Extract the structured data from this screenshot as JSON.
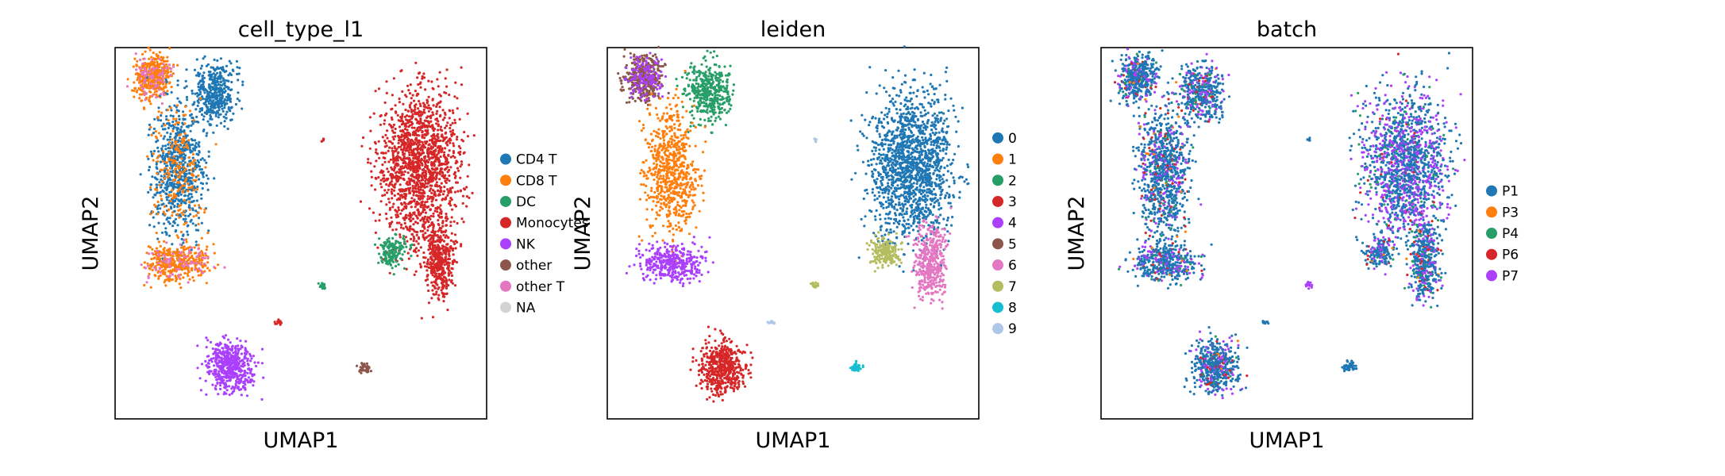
{
  "chart_data": [
    {
      "type": "scatter",
      "title": "cell_type_l1",
      "xlabel": "UMAP1",
      "ylabel": "UMAP2",
      "grid": false,
      "ticks": false,
      "legend_placement": "right",
      "series": [
        {
          "name": "CD4 T",
          "color": "#1f77b4"
        },
        {
          "name": "CD8 T",
          "color": "#ff7f0e"
        },
        {
          "name": "DC",
          "color": "#279e68"
        },
        {
          "name": "Monocytes",
          "color": "#d62728"
        },
        {
          "name": "NK",
          "color": "#aa40fc"
        },
        {
          "name": "other",
          "color": "#8c564b"
        },
        {
          "name": "other T",
          "color": "#e377c2"
        },
        {
          "name": "NA",
          "color": "#d3d3d3"
        }
      ]
    },
    {
      "type": "scatter",
      "title": "leiden",
      "xlabel": "UMAP1",
      "ylabel": "UMAP2",
      "grid": false,
      "ticks": false,
      "legend_placement": "right",
      "series": [
        {
          "name": "0",
          "color": "#1f77b4"
        },
        {
          "name": "1",
          "color": "#ff7f0e"
        },
        {
          "name": "2",
          "color": "#279e68"
        },
        {
          "name": "3",
          "color": "#d62728"
        },
        {
          "name": "4",
          "color": "#aa40fc"
        },
        {
          "name": "5",
          "color": "#8c564b"
        },
        {
          "name": "6",
          "color": "#e377c2"
        },
        {
          "name": "7",
          "color": "#b5bd61"
        },
        {
          "name": "8",
          "color": "#17becf"
        },
        {
          "name": "9",
          "color": "#aec7e8"
        }
      ]
    },
    {
      "type": "scatter",
      "title": "batch",
      "xlabel": "UMAP1",
      "ylabel": "UMAP2",
      "grid": false,
      "ticks": false,
      "legend_placement": "right",
      "series": [
        {
          "name": "P1",
          "color": "#1f77b4"
        },
        {
          "name": "P3",
          "color": "#ff7f0e"
        },
        {
          "name": "P4",
          "color": "#279e68"
        },
        {
          "name": "P6",
          "color": "#d62728"
        },
        {
          "name": "P7",
          "color": "#aa40fc"
        }
      ]
    }
  ]
}
